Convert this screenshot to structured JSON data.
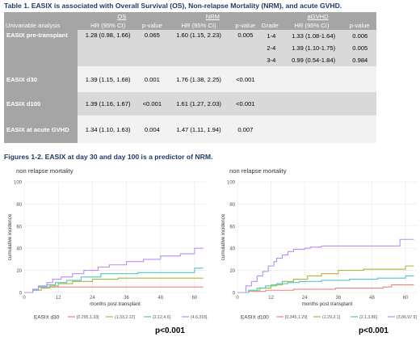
{
  "table": {
    "title": "Table 1. EASIX is associated with Overall Survival (OS), Non-relapse Mortality (NRM), and acute GVHD.",
    "groups": {
      "os": "OS",
      "nrm": "NRM",
      "agvhd": "aGVHD"
    },
    "subheaders": {
      "analysis": "Univariable analysis",
      "hr": "HR (95% CI)",
      "p": "p-value",
      "grade": "Grade",
      "hr2": "HR (95% CI)",
      "p2": "p-value"
    },
    "rows": [
      {
        "name": "EASIX pre-transplant",
        "os_hr": "1.28 (0.98, 1.66)",
        "os_p": "0.065",
        "nrm_hr": "1.60 (1.15, 2.23)",
        "nrm_p": "0.005",
        "gvhd": [
          {
            "grade": "1-4",
            "hr": "1.33 (1.08-1.64)",
            "p": "0.006"
          },
          {
            "grade": "2-4",
            "hr": "1.39 (1.10-1.75)",
            "p": "0.005"
          },
          {
            "grade": "3-4",
            "hr": "0.99 (0.54-1.84)",
            "p": "0.984"
          }
        ]
      },
      {
        "name": "EASIX d30",
        "os_hr": "1.39 (1.15, 1.68)",
        "os_p": "0.001",
        "nrm_hr": "1.76 (1.38, 2.25)",
        "nrm_p": "<0.001"
      },
      {
        "name": "EASIX d100",
        "os_hr": "1.39 (1.16, 1.67)",
        "os_p": "<0.001",
        "nrm_hr": "1.61 (1.27, 2.03)",
        "nrm_p": "<0.001"
      },
      {
        "name": "EASIX at acute GVHD",
        "os_hr": "1.34 (1.10, 1.63)",
        "os_p": "0.004",
        "nrm_hr": "1.47 (1.11, 1.94)",
        "nrm_p": "0.007"
      }
    ]
  },
  "figures": {
    "title": "Figures 1-2. EASIX at day 30 and day 100 is a predictor of NRM.",
    "p_value_left": "p<0.001",
    "p_value_right": "p<0.001"
  },
  "chart_data": [
    {
      "type": "line",
      "step": true,
      "title": "non relapse mortality",
      "xlabel": "months post transplant",
      "ylabel": "cumulative incidence",
      "xlim": [
        0,
        64
      ],
      "ylim": [
        0,
        100
      ],
      "xticks": [
        0,
        12,
        24,
        36,
        48,
        60
      ],
      "yticks": [
        0,
        20,
        40,
        60,
        80,
        100
      ],
      "legend_title": "EASIX d30",
      "grid": true,
      "series": [
        {
          "name": "[0.295,1.33]",
          "color": "#f08080",
          "x": [
            0,
            3,
            5,
            63
          ],
          "y": [
            0,
            3,
            5,
            5
          ]
        },
        {
          "name": "(1.33,2.12]",
          "color": "#a8b83c",
          "x": [
            0,
            3,
            6,
            9,
            12,
            17,
            24,
            33,
            63
          ],
          "y": [
            0,
            2,
            4,
            6,
            8,
            10,
            12,
            13,
            13
          ]
        },
        {
          "name": "(2.12,4.6]",
          "color": "#4cc9c0",
          "x": [
            0,
            3,
            5,
            8,
            11,
            15,
            20,
            27,
            40,
            60,
            63
          ],
          "y": [
            0,
            2,
            5,
            7,
            9,
            11,
            14,
            17,
            18,
            22,
            22
          ]
        },
        {
          "name": "(4.6,318]",
          "color": "#b98ef5",
          "x": [
            0,
            3,
            5,
            8,
            10,
            13,
            17,
            21,
            26,
            30,
            36,
            42,
            48,
            55,
            60,
            63
          ],
          "y": [
            0,
            3,
            6,
            9,
            12,
            14,
            17,
            20,
            23,
            25,
            28,
            30,
            33,
            35,
            40,
            40
          ]
        }
      ]
    },
    {
      "type": "line",
      "step": true,
      "title": "non relapse mortality",
      "xlabel": "months post transplant",
      "ylabel": "cumulative incidence",
      "xlim": [
        0,
        64
      ],
      "ylim": [
        0,
        100
      ],
      "xticks": [
        0,
        12,
        24,
        36,
        48,
        60
      ],
      "yticks": [
        0,
        20,
        40,
        60,
        80,
        100
      ],
      "legend_title": "EASIX d100",
      "grid": true,
      "series": [
        {
          "name": "[0.345,1.29]",
          "color": "#f08080",
          "x": [
            0,
            4,
            10,
            20,
            35,
            52,
            55,
            63
          ],
          "y": [
            0,
            1,
            2,
            3,
            4,
            5,
            7,
            7
          ]
        },
        {
          "name": "(1.29,2.1]",
          "color": "#a8b83c",
          "x": [
            0,
            4,
            8,
            12,
            16,
            20,
            25,
            30,
            36,
            45,
            60,
            63
          ],
          "y": [
            0,
            2,
            4,
            7,
            10,
            12,
            15,
            17,
            20,
            21,
            24,
            24
          ]
        },
        {
          "name": "(2.1,3.86]",
          "color": "#4cc9c0",
          "x": [
            0,
            4,
            7,
            10,
            14,
            18,
            22,
            30,
            40,
            50,
            60,
            63
          ],
          "y": [
            0,
            2,
            4,
            6,
            8,
            9,
            10,
            11,
            12,
            13,
            15,
            15
          ]
        },
        {
          "name": "(3.86,97.9]",
          "color": "#b98ef5",
          "x": [
            0,
            3,
            5,
            7,
            9,
            11,
            13,
            14,
            16,
            18,
            20,
            24,
            26,
            30,
            58,
            63
          ],
          "y": [
            0,
            6,
            10,
            15,
            19,
            24,
            28,
            31,
            34,
            37,
            39,
            40,
            41,
            42,
            48,
            48
          ]
        }
      ]
    }
  ]
}
